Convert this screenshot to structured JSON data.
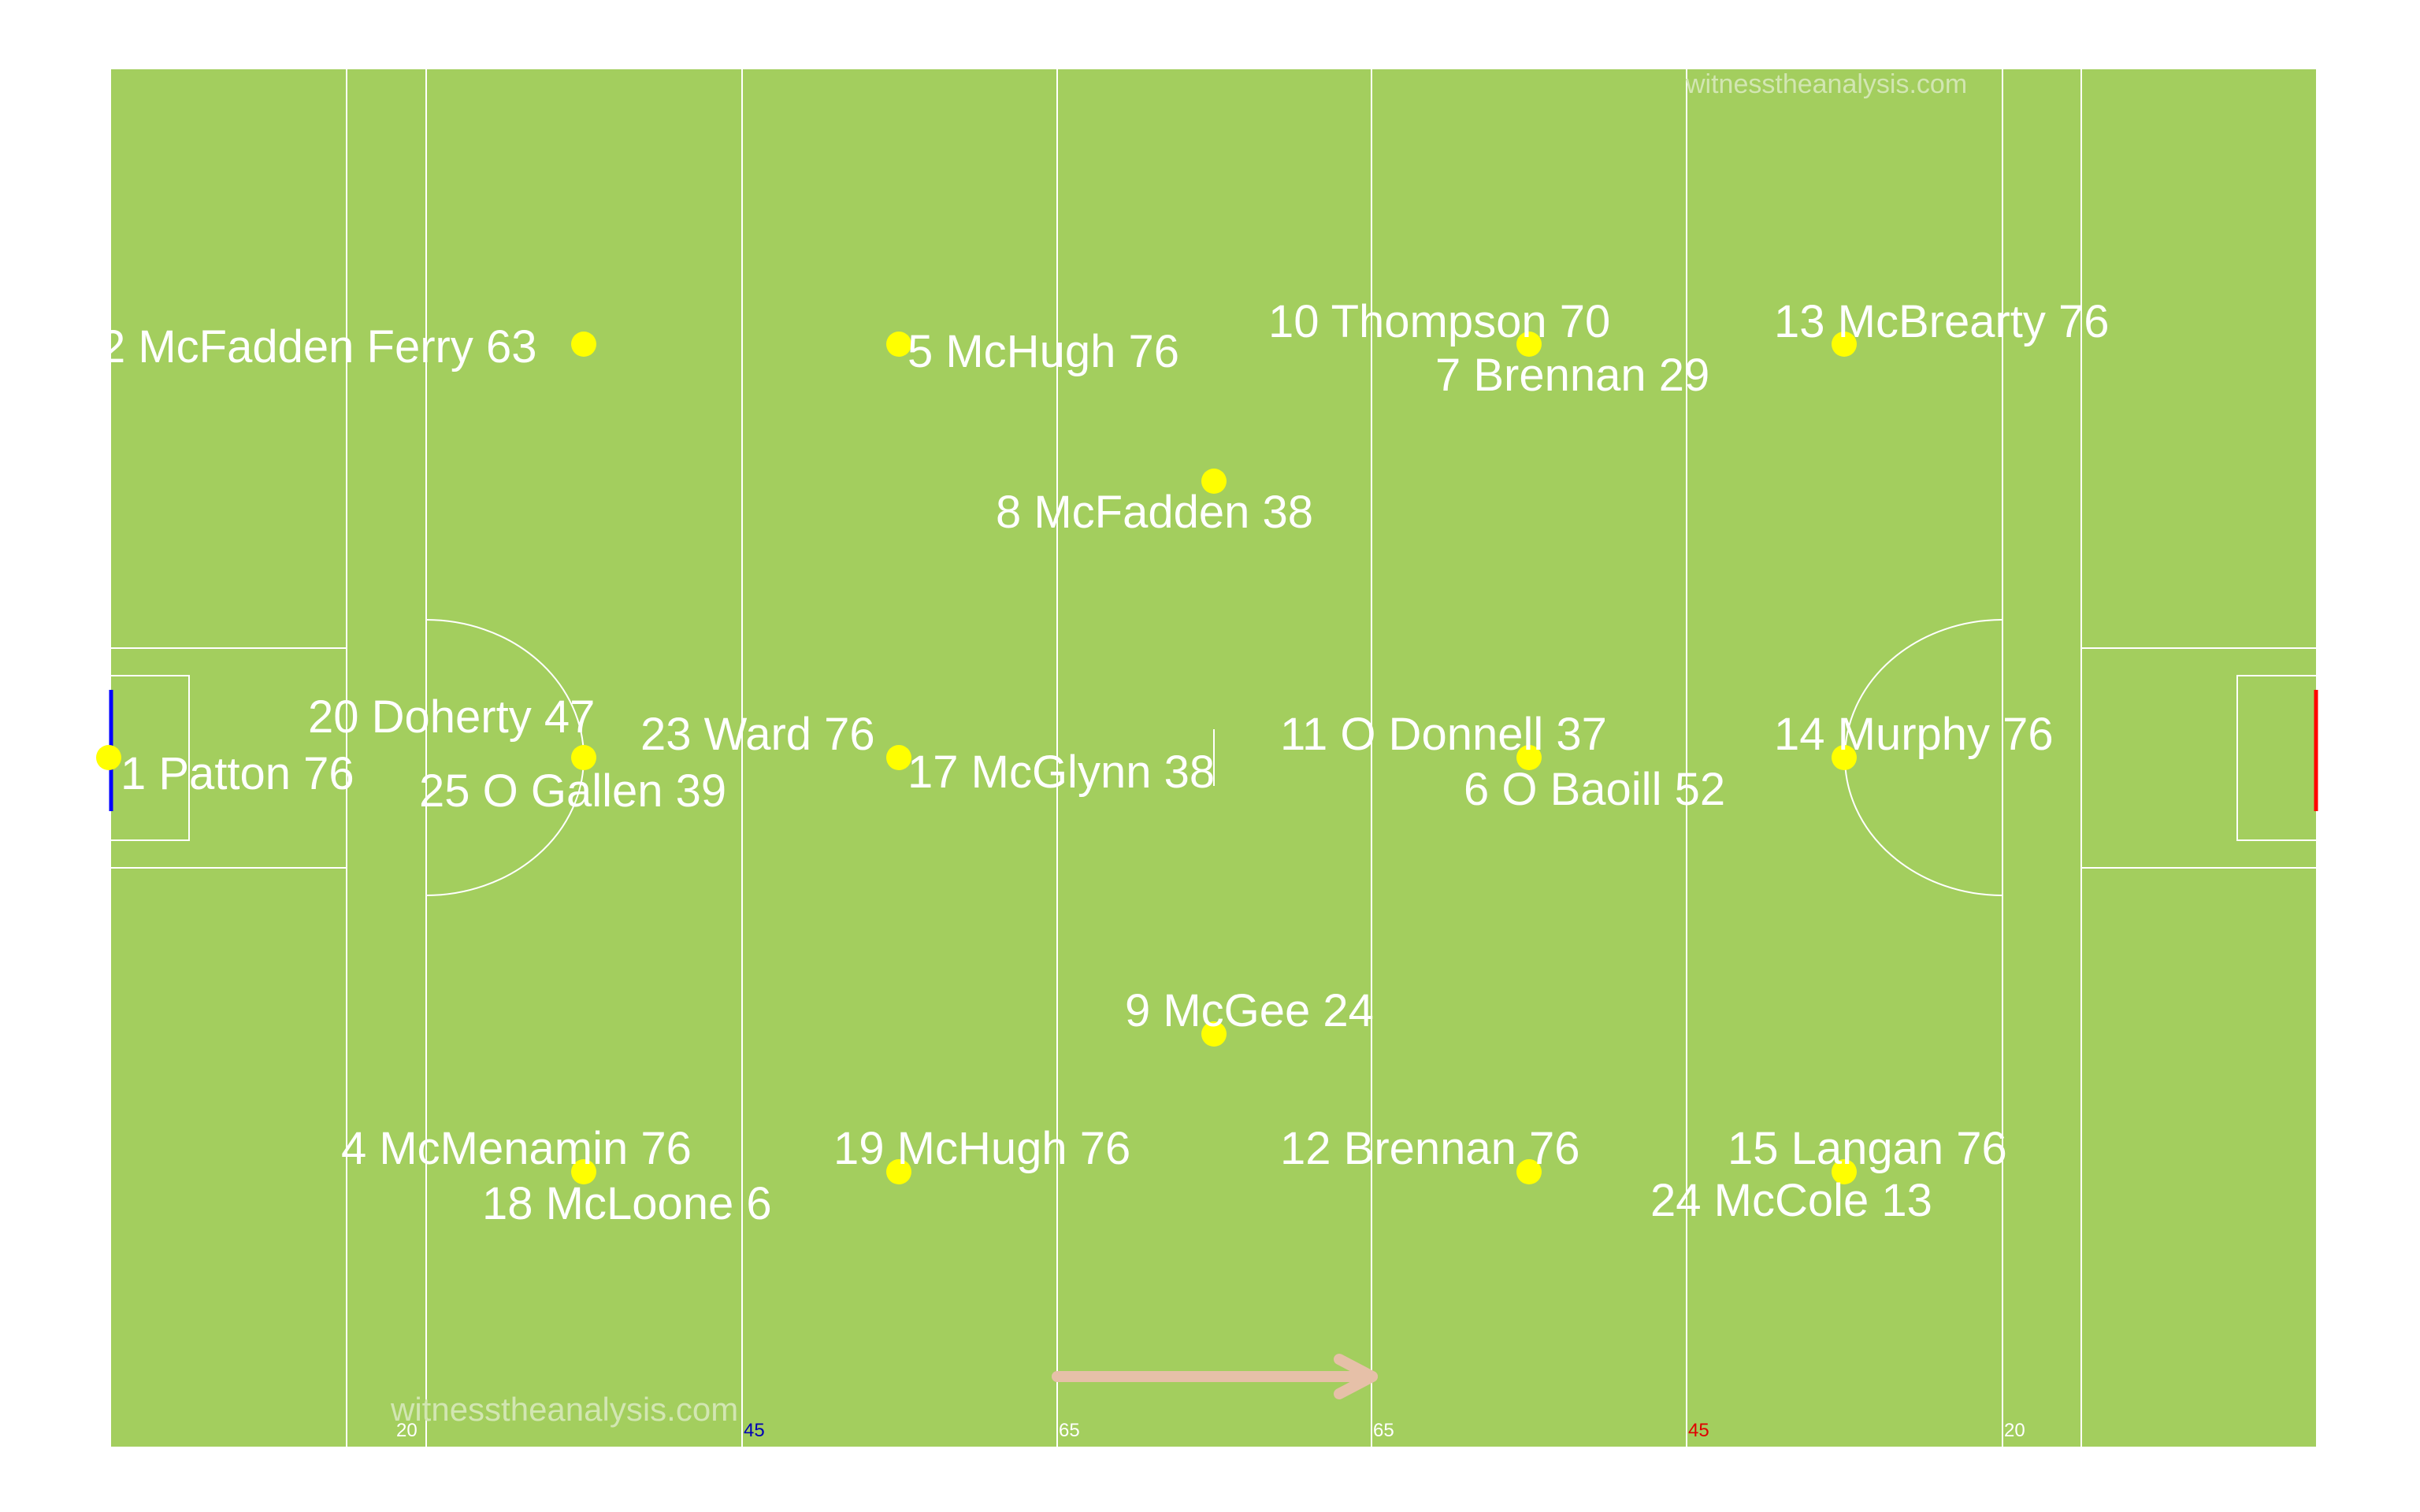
{
  "watermark": "witnesstheanalysis.com",
  "colors": {
    "grass": "#a3ce5e",
    "line": "#ffffff",
    "player_dot": "#ffff00",
    "arrow": "#e6c0a8",
    "left_goal": "#0000ff",
    "right_goal": "#ff0000",
    "label_45_left": "#0000b4",
    "label_45_right": "#e00000"
  },
  "yard_labels": {
    "l20": "20",
    "l45": "45",
    "l65": "65",
    "r65": "65",
    "r45": "45",
    "r20": "20"
  },
  "direction_arrow": "arrow-right-icon",
  "players": [
    {
      "id": "p1",
      "label": "1 Patton  76"
    },
    {
      "id": "p2",
      "label": "2 McFadden Ferry  63"
    },
    {
      "id": "p5",
      "label": "5 McHugh  76"
    },
    {
      "id": "p10",
      "label": "10 Thompson  70"
    },
    {
      "id": "p7",
      "label": "7 Brennan 29"
    },
    {
      "id": "p13",
      "label": "13 McBrearty  76"
    },
    {
      "id": "p8",
      "label": "8 McFadden  38"
    },
    {
      "id": "p20",
      "label": "20 Doherty  47"
    },
    {
      "id": "p25",
      "label": "25 O Gallen 39"
    },
    {
      "id": "p23",
      "label": "23 Ward 76"
    },
    {
      "id": "p17",
      "label": "17 McGlynn 38"
    },
    {
      "id": "p11",
      "label": "11 O Donnell  37"
    },
    {
      "id": "p6",
      "label": "6 O Baoill 52"
    },
    {
      "id": "p14",
      "label": "14 Murphy  76"
    },
    {
      "id": "p9",
      "label": "9 McGee 24"
    },
    {
      "id": "p4",
      "label": "4 McMenamin  76"
    },
    {
      "id": "p18",
      "label": "18 McLoone 6"
    },
    {
      "id": "p19",
      "label": "19 McHugh  76"
    },
    {
      "id": "p12",
      "label": "12 Brennan 76"
    },
    {
      "id": "p15",
      "label": "15 Langan   76"
    },
    {
      "id": "p24",
      "label": "24 McCole 13"
    }
  ]
}
